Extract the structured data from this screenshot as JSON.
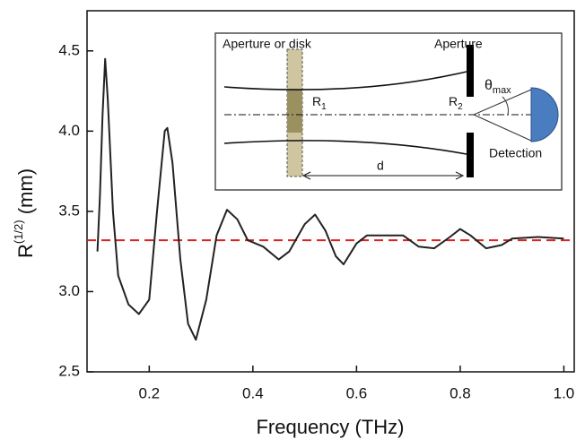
{
  "chart_data": {
    "type": "line",
    "x_label": "Frequency (THz)",
    "y_label": {
      "base": "R",
      "sup": "(1/2)",
      "unit": " (mm)"
    },
    "xlim": [
      0.08,
      1.02
    ],
    "ylim": [
      2.5,
      4.75
    ],
    "xticks": [
      0.2,
      0.4,
      0.6,
      0.8,
      {
        "value": 1.0,
        "label": "1.0"
      }
    ],
    "yticks": [
      2.5,
      {
        "value": 3.0,
        "label": "3.0"
      },
      3.5,
      {
        "value": 4.0,
        "label": "4.0"
      },
      4.5
    ],
    "series": [
      {
        "color": "#222222",
        "x": [
          0.1,
          0.105,
          0.11,
          0.115,
          0.12,
          0.13,
          0.14,
          0.16,
          0.18,
          0.2,
          0.215,
          0.23,
          0.235,
          0.245,
          0.26,
          0.275,
          0.29,
          0.31,
          0.33,
          0.35,
          0.37,
          0.39,
          0.42,
          0.45,
          0.47,
          0.5,
          0.52,
          0.54,
          0.56,
          0.575,
          0.6,
          0.62,
          0.66,
          0.69,
          0.72,
          0.75,
          0.78,
          0.8,
          0.82,
          0.85,
          0.88,
          0.9,
          0.95,
          1.0
        ],
        "values": [
          3.25,
          3.6,
          4.1,
          4.45,
          4.2,
          3.5,
          3.1,
          2.92,
          2.86,
          2.95,
          3.5,
          4.0,
          4.02,
          3.8,
          3.2,
          2.8,
          2.7,
          2.95,
          3.35,
          3.51,
          3.45,
          3.32,
          3.28,
          3.2,
          3.25,
          3.42,
          3.48,
          3.38,
          3.22,
          3.17,
          3.3,
          3.35,
          3.35,
          3.35,
          3.28,
          3.27,
          3.34,
          3.39,
          3.35,
          3.27,
          3.29,
          3.33,
          3.34,
          3.33
        ]
      }
    ],
    "reference_line": {
      "value": 3.32,
      "color": "#e02020"
    },
    "inset": {
      "aperture_disk": "Aperture or disk",
      "aperture": "Aperture",
      "r1": {
        "base": "R",
        "sub": "1"
      },
      "r2": {
        "base": "R",
        "sub": "2"
      },
      "theta": {
        "base": "θ",
        "sub": "max"
      },
      "detection": "Detection",
      "distance": "d"
    }
  }
}
